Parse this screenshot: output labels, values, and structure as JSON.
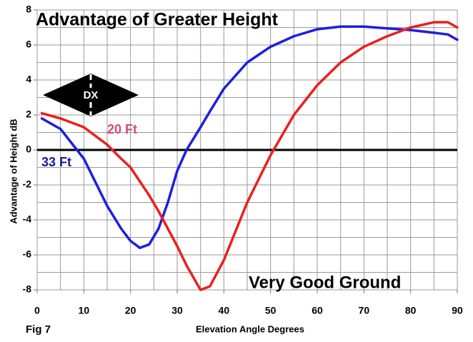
{
  "chart_data": {
    "type": "line",
    "title": "Advantage of Greater Height",
    "x_label": "Elevation Angle  Degrees",
    "y_label": "Advantage of Height  dB",
    "figure_label": "Fig 7",
    "annotations": [
      "Very Good Ground",
      "DX"
    ],
    "x": [
      1,
      5,
      10,
      15,
      18,
      20,
      22,
      24,
      26,
      28,
      30,
      32,
      35,
      37,
      40,
      45,
      50,
      55,
      60,
      65,
      70,
      75,
      80,
      85,
      88,
      90
    ],
    "series": [
      {
        "name": "33 Ft",
        "color": "#1e1ee0",
        "label_color": "#1a1a9c",
        "values": [
          1.8,
          1.2,
          -0.5,
          -3.2,
          -4.5,
          -5.2,
          -5.6,
          -5.4,
          -4.5,
          -3.0,
          -1.2,
          0,
          1.3,
          2.2,
          3.5,
          5.0,
          5.9,
          6.5,
          6.9,
          7.05,
          7.05,
          6.95,
          6.85,
          6.7,
          6.6,
          6.3
        ]
      },
      {
        "name": "20 Ft",
        "color": "#e8201f",
        "label_color": "#d04a7c",
        "values": [
          2.1,
          1.8,
          1.3,
          0.3,
          -0.5,
          -1.0,
          -1.8,
          -2.6,
          -3.5,
          -4.5,
          -5.5,
          -6.6,
          -8.0,
          -7.8,
          -6.3,
          -3.0,
          -0.3,
          2.0,
          3.7,
          5.0,
          5.9,
          6.5,
          7.0,
          7.3,
          7.3,
          7.0
        ]
      }
    ],
    "reference_line": 0,
    "xlim": [
      0,
      90
    ],
    "ylim": [
      -8,
      8
    ],
    "xticks": [
      0,
      10,
      20,
      30,
      40,
      50,
      60,
      70,
      80,
      90
    ],
    "yticks": [
      -8,
      -6,
      -4,
      -2,
      0,
      2,
      4,
      6,
      8
    ],
    "xgrid": [
      0,
      5,
      10,
      15,
      20,
      25,
      30,
      35,
      40,
      45,
      50,
      55,
      60,
      65,
      70,
      75,
      80,
      85,
      90
    ],
    "ygrid": [
      -8,
      -7,
      -6,
      -5,
      -4,
      -3,
      -2,
      -1,
      0,
      1,
      2,
      3,
      4,
      5,
      6,
      7,
      8
    ],
    "grid": true
  }
}
